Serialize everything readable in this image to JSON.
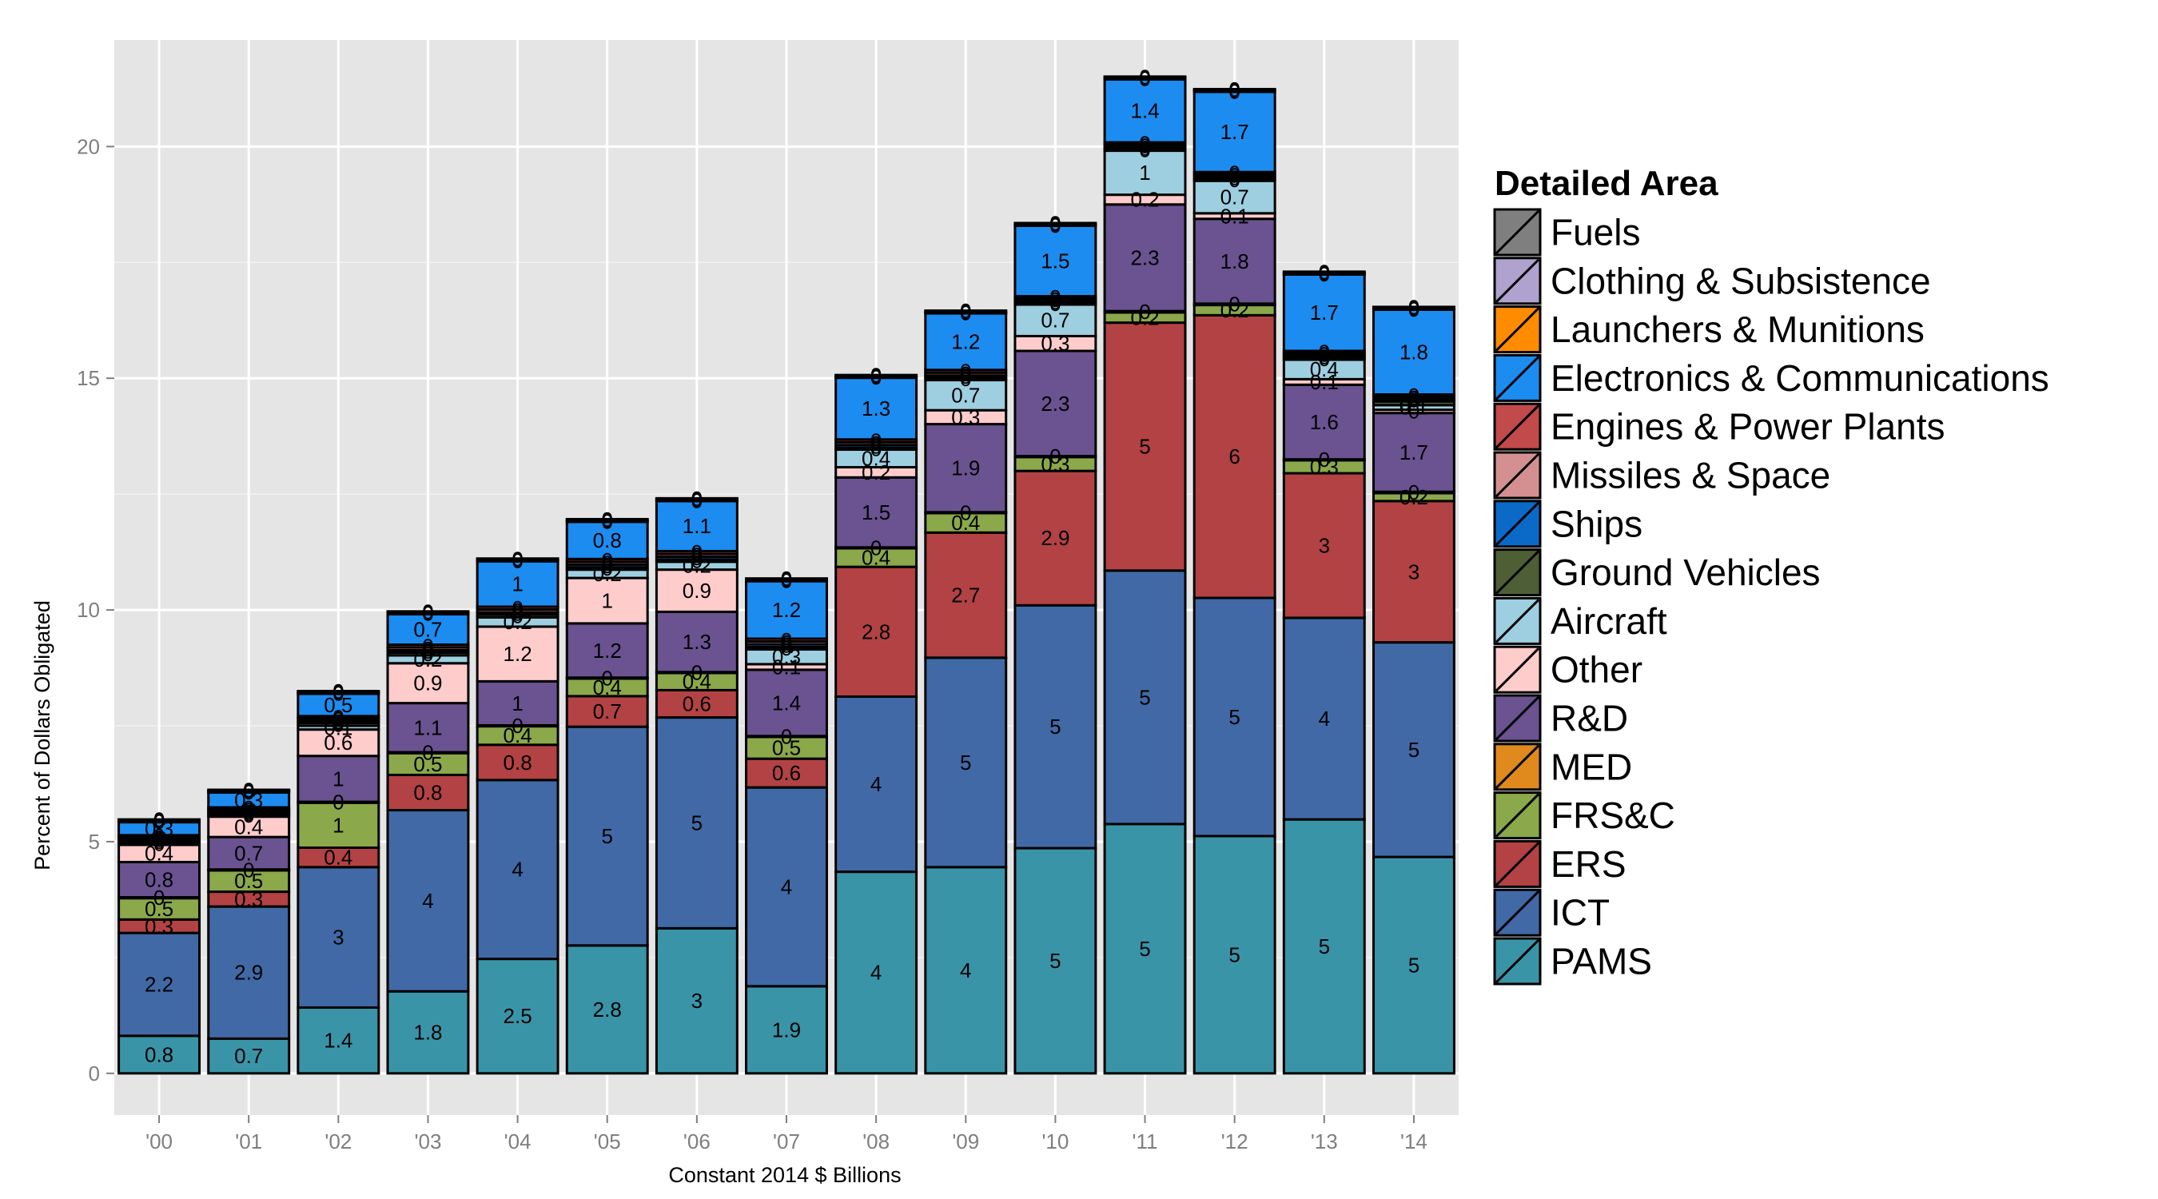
{
  "chart_data": {
    "type": "bar",
    "stacked": true,
    "xlabel": "Constant 2014 $ Billions",
    "ylabel": "Percent of Dollars Obligated",
    "ylim": [
      -0.9,
      22.3
    ],
    "yticks": [
      0,
      5,
      10,
      15,
      20
    ],
    "grid": true,
    "legend_position": "right",
    "legend_title": "Detailed Area",
    "categories": [
      "'00",
      "'01",
      "'02",
      "'03",
      "'04",
      "'05",
      "'06",
      "'07",
      "'08",
      "'09",
      "'10",
      "'11",
      "'12",
      "'13",
      "'14"
    ],
    "stack_order": [
      "PAMS",
      "ICT",
      "ERS",
      "FRS&C",
      "MED",
      "R&D",
      "Other",
      "Aircraft",
      "Ground Vehicles",
      "Ships",
      "Missiles & Space",
      "Engines & Power Plants",
      "Electronics & Communications",
      "Launchers & Munitions",
      "Clothing & Subsistence",
      "Fuels"
    ],
    "legend_order": [
      "Fuels",
      "Clothing & Subsistence",
      "Launchers & Munitions",
      "Electronics & Communications",
      "Engines & Power Plants",
      "Missiles & Space",
      "Ships",
      "Ground Vehicles",
      "Aircraft",
      "Other",
      "R&D",
      "MED",
      "FRS&C",
      "ERS",
      "ICT",
      "PAMS"
    ],
    "series": [
      {
        "name": "PAMS",
        "color": "#3A94A8",
        "values": [
          0.81,
          0.75,
          1.42,
          1.77,
          2.47,
          2.76,
          3.13,
          1.88,
          4.35,
          4.45,
          4.86,
          5.38,
          5.12,
          5.48,
          4.67
        ],
        "labels": [
          "0.8",
          "0.7",
          "1.4",
          "1.8",
          "2.5",
          "2.8",
          "3",
          "1.9",
          "4",
          "4",
          "5",
          "5",
          "5",
          "5",
          "5"
        ]
      },
      {
        "name": "ICT",
        "color": "#4169A6",
        "values": [
          2.22,
          2.85,
          3.03,
          3.91,
          3.86,
          4.72,
          4.55,
          4.29,
          3.78,
          4.52,
          5.24,
          5.47,
          5.14,
          4.35,
          4.63
        ],
        "labels": [
          "2.2",
          "2.9",
          "3",
          "4",
          "4",
          "5",
          "5",
          "4",
          "4",
          "5",
          "5",
          "5",
          "5",
          "4",
          "5"
        ]
      },
      {
        "name": "ERS",
        "color": "#B34244",
        "values": [
          0.29,
          0.32,
          0.42,
          0.76,
          0.76,
          0.66,
          0.59,
          0.62,
          2.8,
          2.7,
          2.9,
          5.35,
          6.1,
          3.12,
          3.05
        ],
        "labels": [
          "0.3",
          "0.3",
          "0.4",
          "0.8",
          "0.8",
          "0.7",
          "0.6",
          "0.6",
          "2.8",
          "2.7",
          "2.9",
          "5",
          "6",
          "3",
          "3"
        ]
      },
      {
        "name": "FRS&C",
        "color": "#8BA84A",
        "values": [
          0.46,
          0.46,
          0.97,
          0.47,
          0.4,
          0.38,
          0.37,
          0.47,
          0.4,
          0.42,
          0.3,
          0.22,
          0.22,
          0.28,
          0.17
        ],
        "labels": [
          "0.5",
          "0.5",
          "1",
          "0.5",
          "0.4",
          "0.4",
          "0.4",
          "0.5",
          "0.4",
          "0.4",
          "0.3",
          "0.2",
          "0.2",
          "0.3",
          "0.2"
        ]
      },
      {
        "name": "MED",
        "color": "#E08A1E",
        "values": [
          0.02,
          0.02,
          0.02,
          0.02,
          0.02,
          0.02,
          0.02,
          0.02,
          0.02,
          0.02,
          0.02,
          0.03,
          0.03,
          0.02,
          0.03
        ],
        "labels": [
          "0",
          "0",
          "0",
          "0",
          "0",
          "0",
          "0",
          "0",
          "0",
          "0",
          "0",
          "0",
          "0",
          "0",
          "0"
        ]
      },
      {
        "name": "R&D",
        "color": "#6A5390",
        "values": [
          0.76,
          0.7,
          0.99,
          1.06,
          0.95,
          1.17,
          1.3,
          1.43,
          1.51,
          1.9,
          2.27,
          2.3,
          1.83,
          1.61,
          1.7
        ],
        "labels": [
          "0.8",
          "0.7",
          "1",
          "1.1",
          "1",
          "1.2",
          "1.3",
          "1.4",
          "1.5",
          "1.9",
          "2.3",
          "2.3",
          "1.8",
          "1.6",
          "1.7"
        ]
      },
      {
        "name": "Other",
        "color": "#FFCCCC",
        "values": [
          0.37,
          0.44,
          0.57,
          0.86,
          1.18,
          0.98,
          0.91,
          0.12,
          0.22,
          0.3,
          0.32,
          0.21,
          0.12,
          0.12,
          0.07
        ],
        "labels": [
          "0.4",
          "0.4",
          "0.6",
          "0.9",
          "1.2",
          "1",
          "0.9",
          "0.1",
          "0.2",
          "0.3",
          "0.3",
          "0.2",
          "0.1",
          "0.1",
          "0"
        ]
      },
      {
        "name": "Aircraft",
        "color": "#9DCFE0",
        "values": [
          0.05,
          0.05,
          0.08,
          0.17,
          0.2,
          0.18,
          0.17,
          0.32,
          0.38,
          0.65,
          0.68,
          0.95,
          0.7,
          0.42,
          0.1
        ],
        "labels": [
          "0",
          "0",
          "0.1",
          "0.2",
          "0.2",
          "0.2",
          "0.2",
          "0.3",
          "0.4",
          "0.7",
          "0.7",
          "1",
          "0.7",
          "0.4",
          "0.1"
        ]
      },
      {
        "name": "Ground Vehicles",
        "color": "#4E5F35",
        "values": [
          0.04,
          0.03,
          0.06,
          0.06,
          0.06,
          0.05,
          0.05,
          0.05,
          0.04,
          0.05,
          0.03,
          0.03,
          0.04,
          0.04,
          0.08
        ],
        "labels": [
          "0",
          "0",
          "0",
          "0",
          "0",
          "0",
          "0",
          "0",
          "0",
          "0",
          "0",
          "0",
          "0",
          "0",
          "0.1"
        ]
      },
      {
        "name": "Ships",
        "color": "#0B6AC8",
        "values": [
          0.04,
          0.04,
          0.05,
          0.05,
          0.05,
          0.06,
          0.06,
          0.06,
          0.06,
          0.05,
          0.05,
          0.05,
          0.05,
          0.05,
          0.05
        ],
        "labels": [
          "0",
          "0",
          "0",
          "0",
          "0",
          "0",
          "0",
          "0",
          "0",
          "0",
          "0",
          "0",
          "0",
          "0",
          "0"
        ]
      },
      {
        "name": "Missiles & Space",
        "color": "#D49090",
        "values": [
          0.04,
          0.04,
          0.05,
          0.06,
          0.06,
          0.06,
          0.06,
          0.06,
          0.06,
          0.06,
          0.05,
          0.05,
          0.05,
          0.05,
          0.05
        ],
        "labels": [
          "0",
          "0",
          "0",
          "0",
          "0",
          "0",
          "0",
          "0",
          "0",
          "0",
          "0",
          "0",
          "0",
          "0",
          "0"
        ]
      },
      {
        "name": "Engines & Power Plants",
        "color": "#C24A4A",
        "values": [
          0.04,
          0.04,
          0.05,
          0.06,
          0.06,
          0.06,
          0.06,
          0.06,
          0.06,
          0.06,
          0.05,
          0.05,
          0.05,
          0.05,
          0.05
        ],
        "labels": [
          "0",
          "0",
          "0",
          "0",
          "0",
          "0",
          "0",
          "0",
          "0",
          "0",
          "0",
          "0",
          "0",
          "0",
          "0"
        ]
      },
      {
        "name": "Electronics & Communications",
        "color": "#1C8CF0",
        "values": [
          0.28,
          0.32,
          0.48,
          0.66,
          0.98,
          0.8,
          1.08,
          1.24,
          1.33,
          1.22,
          1.52,
          1.36,
          1.73,
          1.65,
          1.83
        ],
        "labels": [
          "0.3",
          "0.3",
          "0.5",
          "0.7",
          "1",
          "0.8",
          "1.1",
          "1.2",
          "1.3",
          "1.2",
          "1.5",
          "1.4",
          "1.7",
          "1.7",
          "1.8"
        ]
      },
      {
        "name": "Launchers & Munitions",
        "color": "#FF8C00",
        "values": [
          0.02,
          0.02,
          0.02,
          0.02,
          0.02,
          0.02,
          0.02,
          0.02,
          0.02,
          0.02,
          0.02,
          0.02,
          0.02,
          0.02,
          0.02
        ],
        "labels": [
          "0",
          "0",
          "0",
          "0",
          "0",
          "0",
          "0",
          "0",
          "0",
          "0",
          "0",
          "0",
          "0",
          "0",
          "0"
        ]
      },
      {
        "name": "Clothing & Subsistence",
        "color": "#B0A2CE",
        "values": [
          0.02,
          0.02,
          0.02,
          0.02,
          0.02,
          0.02,
          0.02,
          0.02,
          0.02,
          0.02,
          0.02,
          0.02,
          0.02,
          0.02,
          0.02
        ],
        "labels": [
          "0",
          "0",
          "0",
          "0",
          "0",
          "0",
          "0",
          "0",
          "0",
          "0",
          "0",
          "0",
          "0",
          "0",
          "0"
        ]
      },
      {
        "name": "Fuels",
        "color": "#7F7F7F",
        "values": [
          0.02,
          0.02,
          0.02,
          0.02,
          0.02,
          0.02,
          0.02,
          0.02,
          0.02,
          0.02,
          0.02,
          0.02,
          0.02,
          0.02,
          0.02
        ],
        "labels": [
          "0",
          "0",
          "0",
          "0",
          "0",
          "0",
          "0",
          "0",
          "0",
          "0",
          "0",
          "0",
          "0",
          "0",
          "0"
        ]
      }
    ]
  }
}
